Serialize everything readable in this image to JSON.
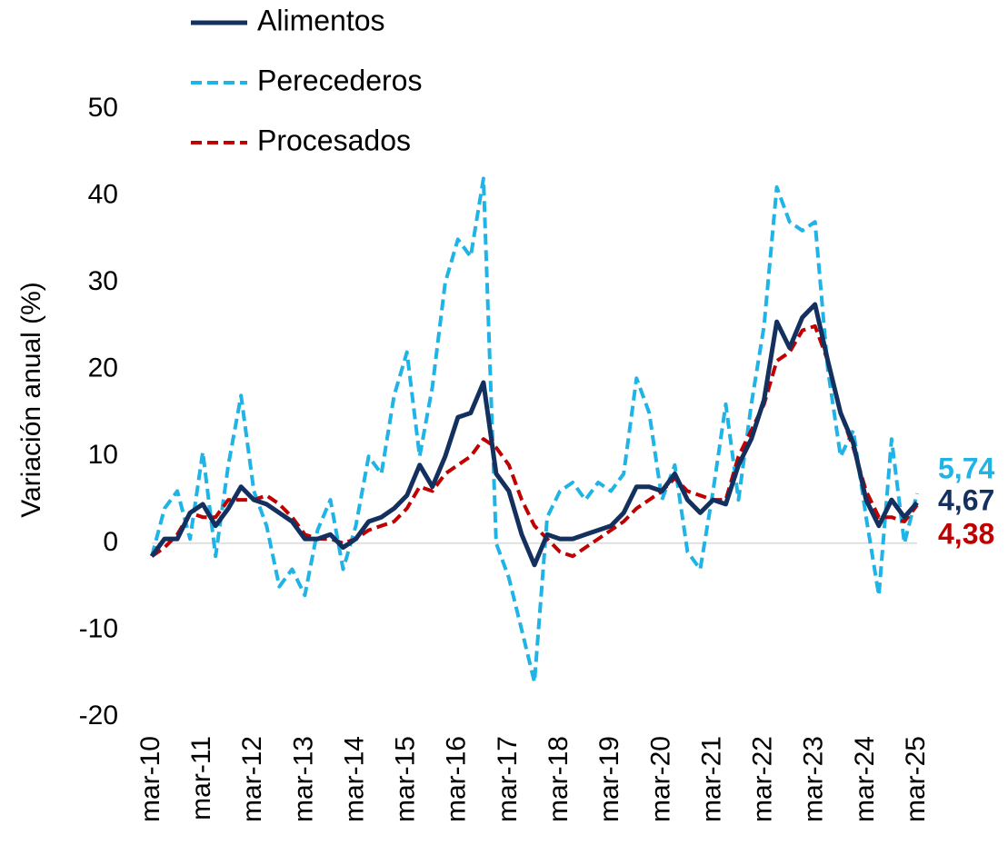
{
  "chart_data": {
    "type": "line",
    "y_label": "Variación anual (%)",
    "categories": [
      "mar-10",
      null,
      null,
      null,
      "mar-11",
      null,
      null,
      null,
      "mar-12",
      null,
      null,
      null,
      "mar-13",
      null,
      null,
      null,
      "mar-14",
      null,
      null,
      null,
      "mar-15",
      null,
      null,
      null,
      "mar-16",
      null,
      null,
      null,
      "mar-17",
      null,
      null,
      null,
      "mar-18",
      null,
      null,
      null,
      "mar-19",
      null,
      null,
      null,
      "mar-20",
      null,
      null,
      null,
      "mar-21",
      null,
      null,
      null,
      "mar-22",
      null,
      null,
      null,
      "mar-23",
      null,
      null,
      null,
      "mar-24",
      null,
      null,
      null,
      "mar-25"
    ],
    "ylim": [
      -20,
      50
    ],
    "yticks": [
      -20,
      -10,
      0,
      10,
      20,
      30,
      40,
      50
    ],
    "grid": false,
    "legend": "top-left",
    "series": [
      {
        "name": "Alimentos",
        "color": "#14305f",
        "dashed": false,
        "values": [
          -1.5,
          0.5,
          0.5,
          3.5,
          4.5,
          2,
          4,
          6.5,
          5,
          4.5,
          3.5,
          2.5,
          0.5,
          0.5,
          1,
          -0.5,
          0.5,
          2.5,
          3,
          4,
          5.5,
          9,
          6.5,
          10,
          14.5,
          15,
          18.5,
          8,
          6,
          1,
          -2.5,
          1,
          0.5,
          0.5,
          1,
          1.5,
          2,
          3.5,
          6.5,
          6.5,
          6,
          8,
          5,
          3.5,
          5,
          4.5,
          9,
          12,
          16.5,
          25.5,
          22.5,
          26,
          27.5,
          21,
          15,
          11.5,
          5,
          2,
          5,
          3,
          4.67
        ],
        "value_labels": [
          null,
          null,
          null,
          null,
          null,
          null,
          null,
          null,
          null,
          null,
          null,
          null,
          null,
          null,
          null,
          null,
          null,
          null,
          null,
          null,
          null,
          null,
          null,
          null,
          null,
          null,
          null,
          null,
          null,
          null,
          null,
          null,
          null,
          null,
          null,
          null,
          null,
          null,
          null,
          null,
          null,
          null,
          null,
          null,
          null,
          null,
          null,
          null,
          null,
          null,
          null,
          null,
          null,
          null,
          null,
          null,
          null,
          null,
          null,
          null,
          "4,67"
        ]
      },
      {
        "name": "Perecederos",
        "color": "#1fb3e6",
        "dashed": true,
        "values": [
          -1.5,
          4,
          6,
          0.5,
          10.5,
          -1.5,
          9,
          17,
          6,
          2,
          -5,
          -3,
          -6,
          1.5,
          5,
          -3,
          2,
          10,
          8,
          17,
          22,
          10,
          18,
          30,
          35,
          33,
          42,
          0,
          -4,
          -10,
          -16,
          3,
          6,
          7,
          5,
          7,
          6,
          8,
          19,
          15,
          5,
          9,
          -1,
          -3,
          6,
          16,
          5,
          16,
          25,
          41,
          37,
          36,
          37,
          20,
          10,
          13,
          3,
          -6,
          12,
          0,
          5.74
        ],
        "value_labels": [
          null,
          null,
          null,
          null,
          null,
          null,
          null,
          null,
          null,
          null,
          null,
          null,
          null,
          null,
          null,
          null,
          null,
          null,
          null,
          null,
          null,
          null,
          null,
          null,
          null,
          null,
          null,
          null,
          null,
          null,
          null,
          null,
          null,
          null,
          null,
          null,
          null,
          null,
          null,
          null,
          null,
          null,
          null,
          null,
          null,
          null,
          null,
          null,
          null,
          null,
          null,
          null,
          null,
          null,
          null,
          null,
          null,
          null,
          null,
          null,
          "5,74"
        ]
      },
      {
        "name": "Procesados",
        "color": "#c00000",
        "dashed": true,
        "values": [
          -1.5,
          -0.5,
          1,
          3.5,
          3,
          3,
          5,
          5,
          5,
          5.5,
          4.5,
          3,
          1,
          0.5,
          0.5,
          0,
          0.5,
          1.5,
          2,
          2.5,
          4,
          6.5,
          6,
          8,
          9,
          10,
          12,
          11,
          9,
          5,
          2,
          0.5,
          -1,
          -1.5,
          -0.5,
          0.5,
          1.5,
          2.5,
          4,
          5,
          6,
          7.5,
          6,
          5.5,
          5,
          5,
          10,
          13,
          16,
          21,
          22,
          24.5,
          25,
          21,
          15,
          11,
          6,
          3,
          3,
          2.5,
          4.38
        ],
        "value_labels": [
          null,
          null,
          null,
          null,
          null,
          null,
          null,
          null,
          null,
          null,
          null,
          null,
          null,
          null,
          null,
          null,
          null,
          null,
          null,
          null,
          null,
          null,
          null,
          null,
          null,
          null,
          null,
          null,
          null,
          null,
          null,
          null,
          null,
          null,
          null,
          null,
          null,
          null,
          null,
          null,
          null,
          null,
          null,
          null,
          null,
          null,
          null,
          null,
          null,
          null,
          null,
          null,
          null,
          null,
          null,
          null,
          null,
          null,
          null,
          null,
          "4,38"
        ]
      }
    ]
  }
}
